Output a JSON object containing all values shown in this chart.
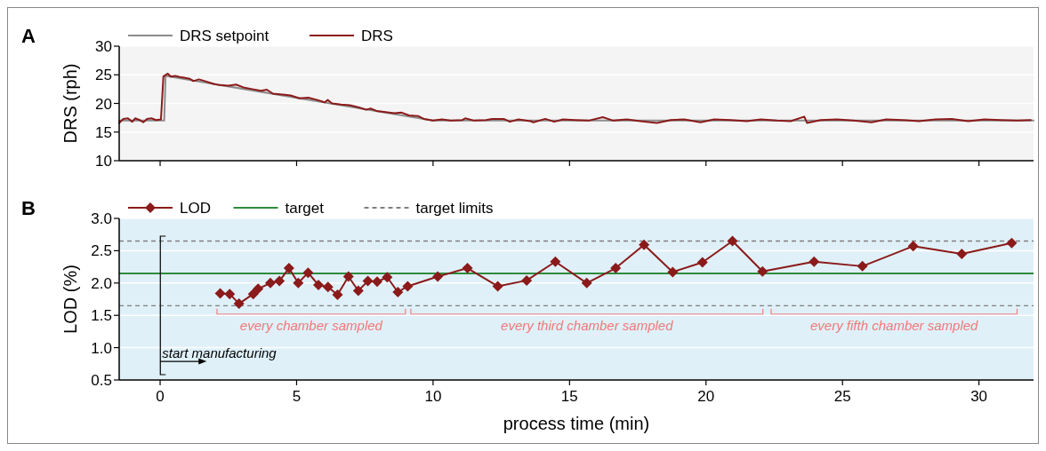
{
  "chart_data": [
    {
      "type": "line",
      "title": "A",
      "ylabel": "DRS (rph)",
      "xlim": [
        -1.5,
        32
      ],
      "xticks": [
        0,
        5,
        10,
        15,
        20,
        25,
        30
      ],
      "ylim": [
        10,
        30
      ],
      "yticks": [
        10,
        15,
        20,
        25,
        30
      ],
      "tick_labels": "y",
      "grid": "y",
      "legend": "top left",
      "line_style": "solid",
      "series": [
        {
          "name": "DRS setpoint",
          "color": "#8c8c8c",
          "x": [
            -1.5,
            0.15,
            0.2,
            10,
            32
          ],
          "values": [
            17,
            17,
            24.8,
            17,
            17
          ]
        },
        {
          "name": "DRS",
          "color": "#8b1a1a",
          "x": [
            -1.5,
            -1.35,
            -1.18,
            -1.02,
            -0.91,
            -0.75,
            -0.62,
            -0.48,
            -0.32,
            -0.15,
            0.03,
            0.12,
            0.28,
            0.39,
            0.55,
            0.72,
            0.88,
            1.09,
            1.22,
            1.42,
            1.64,
            1.96,
            2.18,
            2.51,
            2.78,
            3.05,
            3.37,
            3.7,
            3.91,
            4.13,
            4.57,
            4.78,
            5.11,
            5.43,
            5.76,
            6.03,
            6.14,
            6.3,
            6.63,
            6.95,
            7.28,
            7.55,
            7.71,
            7.93,
            8.25,
            8.58,
            8.85,
            9.12,
            9.45,
            9.66,
            9.99,
            10.32,
            10.64,
            11.07,
            11.18,
            11.51,
            11.94,
            12.16,
            12.59,
            12.81,
            13.13,
            13.57,
            13.68,
            14.11,
            14.44,
            14.76,
            15.2,
            15.7,
            16.22,
            16.6,
            17.1,
            17.6,
            18.2,
            18.7,
            19.2,
            19.8,
            20.3,
            20.9,
            21.5,
            22.0,
            22.6,
            23.1,
            23.6,
            23.7,
            24.2,
            24.8,
            25.4,
            26.06,
            26.6,
            27.2,
            27.8,
            28.4,
            29.0,
            29.6,
            30.2,
            30.8,
            31.4,
            31.9
          ],
          "values": [
            16.6,
            17.3,
            17.4,
            16.8,
            17.4,
            17.1,
            16.7,
            17.3,
            17.4,
            17.1,
            17.2,
            24.7,
            25.2,
            24.7,
            24.8,
            24.6,
            24.5,
            24.3,
            23.9,
            24.2,
            23.9,
            23.4,
            23.2,
            23.1,
            23.3,
            22.8,
            22.5,
            22.2,
            22.4,
            21.7,
            21.5,
            21.4,
            20.9,
            21,
            20.6,
            20.2,
            20.6,
            20,
            19.8,
            19.7,
            19.3,
            18.9,
            19.1,
            18.7,
            18.5,
            18.3,
            18.4,
            17.9,
            17.8,
            17.3,
            17,
            17.2,
            17,
            17.1,
            17.4,
            17,
            17.1,
            17.3,
            17.3,
            16.8,
            17.2,
            16.9,
            16.7,
            17.3,
            16.8,
            17.2,
            17.1,
            17,
            17.6,
            17,
            17.2,
            16.9,
            16.6,
            17.1,
            17.2,
            16.7,
            17.2,
            17.1,
            16.9,
            17.2,
            17,
            16.9,
            17.7,
            16.6,
            17.1,
            17.2,
            17,
            16.7,
            17.2,
            17.1,
            16.9,
            17.2,
            17.3,
            16.9,
            17.2,
            17.1,
            17,
            17.1
          ]
        }
      ]
    },
    {
      "type": "line",
      "title": "B",
      "xlabel": "process time (min)",
      "ylabel": "LOD (%)",
      "xlim": [
        -1.5,
        32
      ],
      "xticks": [
        0,
        5,
        10,
        15,
        20,
        25,
        30
      ],
      "ylim": [
        0.5,
        3.0
      ],
      "yticks": [
        {
          "value": 0.5,
          "label": "0.5"
        },
        {
          "value": 1,
          "label": "1.0"
        },
        {
          "value": 1.5,
          "label": "1.5"
        },
        {
          "value": 2,
          "label": "2.0"
        },
        {
          "value": 2.5,
          "label": "2.5"
        },
        {
          "value": 3,
          "label": "3.0"
        }
      ],
      "grid": "y",
      "legend": "top left",
      "marker": "diamond",
      "line_style": "solid",
      "series": [
        {
          "name": "LOD",
          "color": "#8b1a1a",
          "x": [
            2.2,
            2.55,
            2.89,
            3.41,
            3.59,
            4.04,
            4.37,
            4.72,
            5.06,
            5.42,
            5.8,
            6.15,
            6.5,
            6.9,
            7.26,
            7.61,
            7.95,
            8.32,
            8.71,
            9.07,
            10.17,
            11.26,
            12.37,
            13.43,
            14.48,
            15.63,
            16.69,
            17.73,
            18.78,
            19.87,
            20.97,
            22.07,
            23.96,
            25.73,
            27.59,
            29.37,
            31.2
          ],
          "values": [
            1.84,
            1.83,
            1.68,
            1.83,
            1.91,
            2.0,
            2.03,
            2.23,
            2.0,
            2.16,
            1.97,
            1.94,
            1.82,
            2.1,
            1.88,
            2.03,
            2.02,
            2.09,
            1.86,
            1.95,
            2.1,
            2.23,
            1.95,
            2.04,
            2.33,
            2.0,
            2.23,
            2.59,
            2.17,
            2.32,
            2.65,
            2.18,
            2.33,
            2.26,
            2.57,
            2.45,
            2.62
          ]
        }
      ],
      "ref_lines": [
        {
          "axis": "y",
          "value": 2.15,
          "label": "target",
          "color": "#2e8b3e",
          "line_style": "solid"
        },
        {
          "axis": "y",
          "value": 2.65,
          "label": "target limits",
          "color": "#808080",
          "line_style": "dashed"
        },
        {
          "axis": "y",
          "value": 1.65,
          "color": "#808080",
          "line_style": "dashed"
        }
      ],
      "annotations": [
        "every chamber sampled",
        "every third chamber sampled",
        "every fifth chamber sampled",
        "start manufacturing"
      ]
    }
  ]
}
